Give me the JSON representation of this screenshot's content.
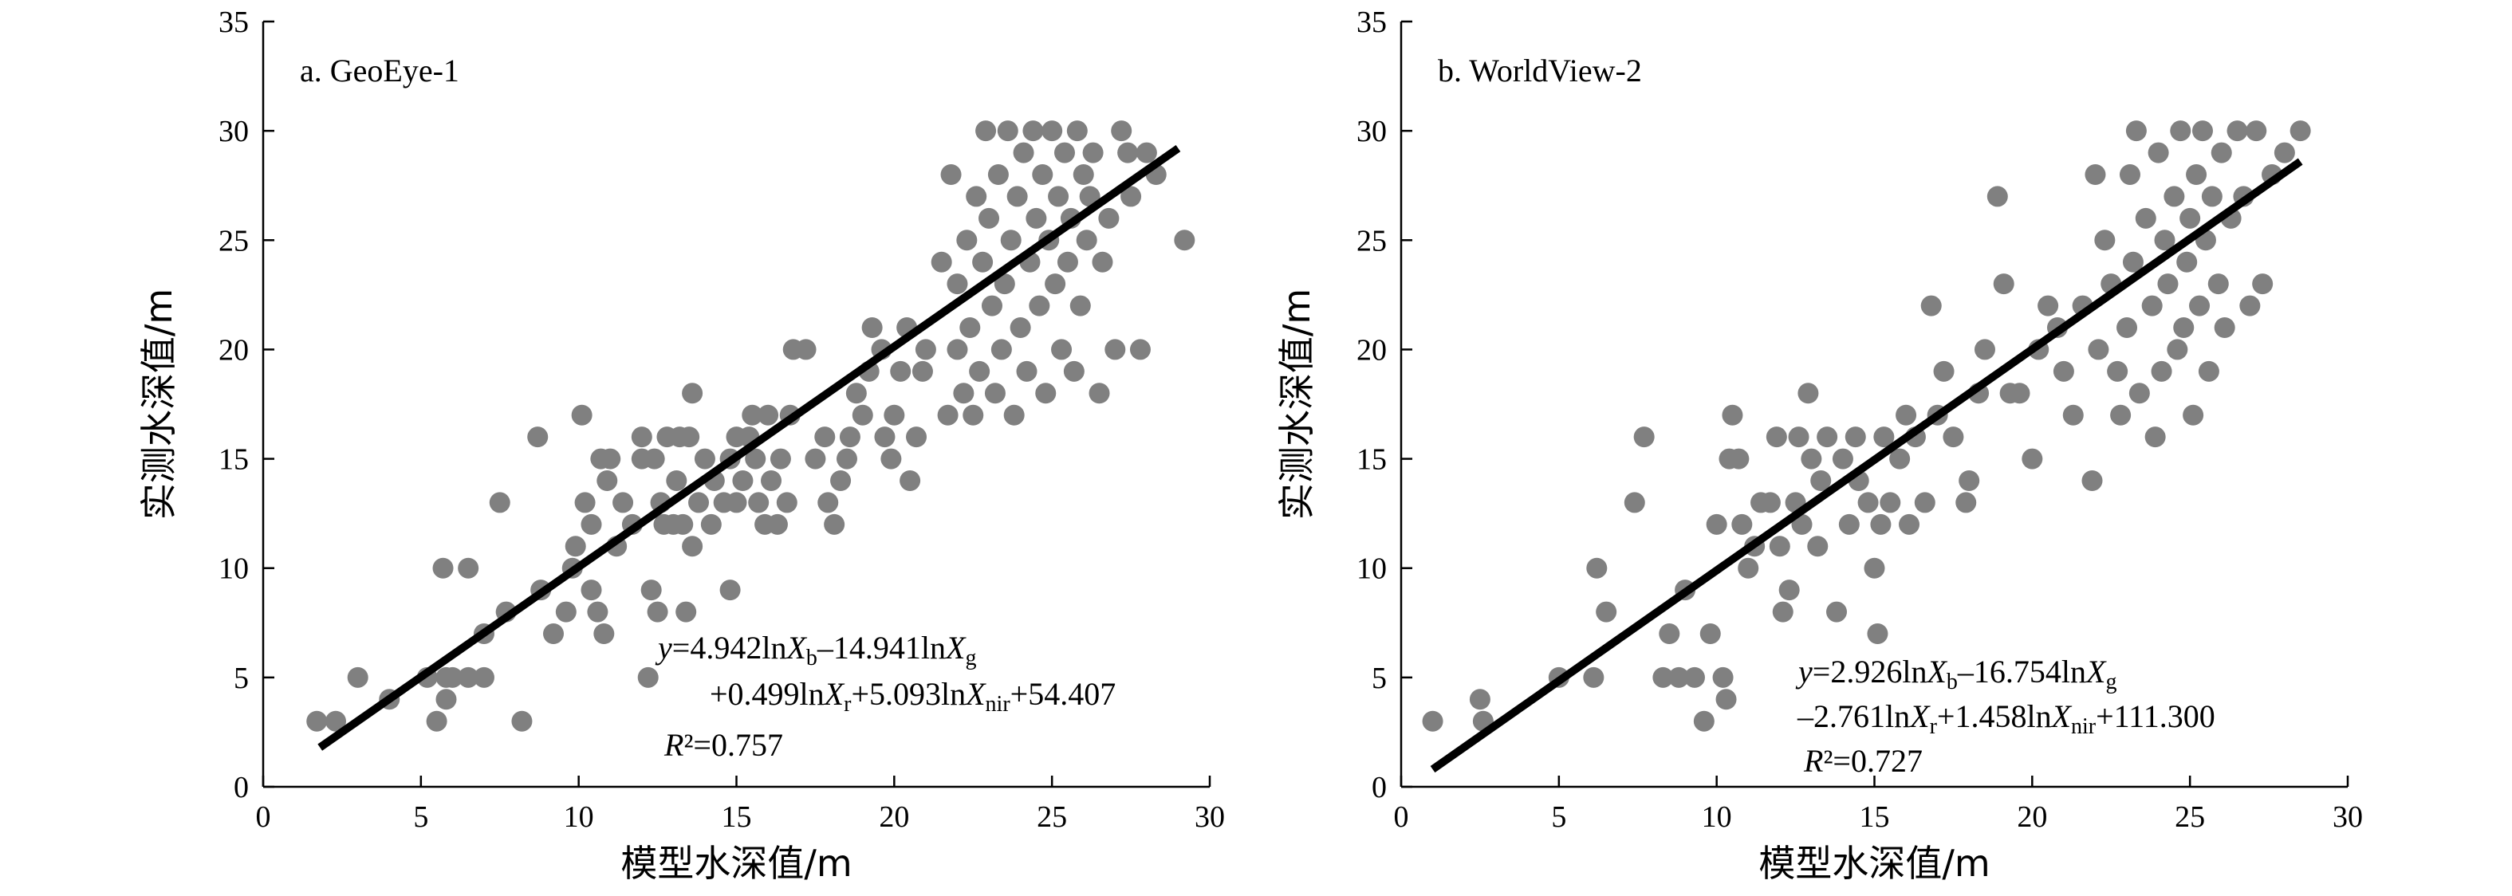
{
  "chart_data": [
    {
      "type": "scatter",
      "panel_label": "a. GeoEye-1",
      "xlabel": "模型水深值/m",
      "ylabel": "实测水深值/m",
      "xlim": [
        0,
        30
      ],
      "ylim": [
        0,
        35
      ],
      "xticks": [
        0,
        5,
        10,
        15,
        20,
        25,
        30
      ],
      "yticks": [
        0,
        5,
        10,
        15,
        20,
        25,
        30,
        35
      ],
      "marker_color": "#808080",
      "line_color": "#000000",
      "equation_line1": "y=4.942lnX_b–14.941lnX_g",
      "equation_line2": "+0.499lnX_r+5.093lnX_nir+54.407",
      "r2_label": "R²=0.757",
      "fit_line": {
        "x": [
          1.8,
          29.0
        ],
        "y": [
          1.8,
          29.2
        ]
      },
      "points": [
        [
          1.7,
          3
        ],
        [
          2.3,
          3
        ],
        [
          3.0,
          5
        ],
        [
          4.0,
          4
        ],
        [
          5.2,
          5
        ],
        [
          5.5,
          3
        ],
        [
          5.8,
          4
        ],
        [
          5.8,
          5
        ],
        [
          6.0,
          5
        ],
        [
          5.7,
          10
        ],
        [
          6.5,
          10
        ],
        [
          6.5,
          5
        ],
        [
          7.0,
          5
        ],
        [
          7.0,
          7
        ],
        [
          7.5,
          13
        ],
        [
          7.7,
          8
        ],
        [
          8.2,
          3
        ],
        [
          8.8,
          9
        ],
        [
          8.7,
          16
        ],
        [
          9.2,
          7
        ],
        [
          9.6,
          8
        ],
        [
          9.8,
          10
        ],
        [
          9.9,
          11
        ],
        [
          10.1,
          17
        ],
        [
          10.2,
          13
        ],
        [
          10.4,
          12
        ],
        [
          10.4,
          9
        ],
        [
          10.6,
          8
        ],
        [
          10.7,
          15
        ],
        [
          10.8,
          7
        ],
        [
          10.9,
          14
        ],
        [
          11.0,
          15
        ],
        [
          11.2,
          11
        ],
        [
          11.4,
          13
        ],
        [
          11.7,
          12
        ],
        [
          12.0,
          15
        ],
        [
          12.0,
          16
        ],
        [
          12.2,
          5
        ],
        [
          12.3,
          9
        ],
        [
          12.4,
          15
        ],
        [
          12.5,
          8
        ],
        [
          12.6,
          13
        ],
        [
          12.7,
          12
        ],
        [
          12.8,
          16
        ],
        [
          13.0,
          12
        ],
        [
          13.1,
          14
        ],
        [
          13.2,
          16
        ],
        [
          13.3,
          12
        ],
        [
          13.4,
          8
        ],
        [
          13.5,
          16
        ],
        [
          13.6,
          11
        ],
        [
          13.6,
          18
        ],
        [
          13.8,
          13
        ],
        [
          14.0,
          15
        ],
        [
          14.2,
          12
        ],
        [
          14.3,
          14
        ],
        [
          14.6,
          13
        ],
        [
          14.8,
          9
        ],
        [
          14.8,
          15
        ],
        [
          15.0,
          13
        ],
        [
          15.0,
          16
        ],
        [
          15.2,
          14
        ],
        [
          15.4,
          16
        ],
        [
          15.5,
          17
        ],
        [
          15.6,
          15
        ],
        [
          15.7,
          13
        ],
        [
          15.9,
          12
        ],
        [
          16.0,
          17
        ],
        [
          16.1,
          14
        ],
        [
          16.3,
          12
        ],
        [
          16.4,
          15
        ],
        [
          16.6,
          13
        ],
        [
          16.7,
          17
        ],
        [
          16.8,
          20
        ],
        [
          17.2,
          20
        ],
        [
          17.5,
          15
        ],
        [
          17.8,
          16
        ],
        [
          17.9,
          13
        ],
        [
          18.1,
          12
        ],
        [
          18.3,
          14
        ],
        [
          18.5,
          15
        ],
        [
          18.6,
          16
        ],
        [
          18.8,
          18
        ],
        [
          19.0,
          17
        ],
        [
          19.2,
          19
        ],
        [
          19.3,
          21
        ],
        [
          19.6,
          20
        ],
        [
          19.7,
          16
        ],
        [
          19.9,
          15
        ],
        [
          20.0,
          17
        ],
        [
          20.2,
          19
        ],
        [
          20.4,
          21
        ],
        [
          20.5,
          14
        ],
        [
          20.7,
          16
        ],
        [
          20.9,
          19
        ],
        [
          21.0,
          20
        ],
        [
          21.5,
          24
        ],
        [
          21.7,
          17
        ],
        [
          21.8,
          28
        ],
        [
          22.0,
          20
        ],
        [
          22.0,
          23
        ],
        [
          22.2,
          18
        ],
        [
          22.3,
          25
        ],
        [
          22.4,
          21
        ],
        [
          22.5,
          17
        ],
        [
          22.6,
          27
        ],
        [
          22.7,
          19
        ],
        [
          22.8,
          24
        ],
        [
          22.9,
          30
        ],
        [
          23.0,
          26
        ],
        [
          23.1,
          22
        ],
        [
          23.2,
          18
        ],
        [
          23.3,
          28
        ],
        [
          23.4,
          20
        ],
        [
          23.5,
          23
        ],
        [
          23.6,
          30
        ],
        [
          23.7,
          25
        ],
        [
          23.8,
          17
        ],
        [
          23.9,
          27
        ],
        [
          24.0,
          21
        ],
        [
          24.1,
          29
        ],
        [
          24.2,
          19
        ],
        [
          24.3,
          24
        ],
        [
          24.4,
          30
        ],
        [
          24.5,
          26
        ],
        [
          24.6,
          22
        ],
        [
          24.7,
          28
        ],
        [
          24.8,
          18
        ],
        [
          24.9,
          25
        ],
        [
          25.0,
          30
        ],
        [
          25.1,
          23
        ],
        [
          25.2,
          27
        ],
        [
          25.3,
          20
        ],
        [
          25.4,
          29
        ],
        [
          25.5,
          24
        ],
        [
          25.6,
          26
        ],
        [
          25.7,
          19
        ],
        [
          25.8,
          30
        ],
        [
          25.9,
          22
        ],
        [
          26.0,
          28
        ],
        [
          26.1,
          25
        ],
        [
          26.2,
          27
        ],
        [
          26.3,
          29
        ],
        [
          26.5,
          18
        ],
        [
          26.6,
          24
        ],
        [
          26.8,
          26
        ],
        [
          27.0,
          20
        ],
        [
          27.2,
          30
        ],
        [
          27.4,
          29
        ],
        [
          27.5,
          27
        ],
        [
          27.8,
          20
        ],
        [
          28.0,
          29
        ],
        [
          28.3,
          28
        ],
        [
          29.2,
          25
        ]
      ]
    },
    {
      "type": "scatter",
      "panel_label": "b. WorldView-2",
      "xlabel": "模型水深值/m",
      "ylabel": "实测水深值/m",
      "xlim": [
        0,
        30
      ],
      "ylim": [
        0,
        35
      ],
      "xticks": [
        0,
        5,
        10,
        15,
        20,
        25,
        30
      ],
      "yticks": [
        0,
        5,
        10,
        15,
        20,
        25,
        30,
        35
      ],
      "marker_color": "#808080",
      "line_color": "#000000",
      "equation_line1": "y=2.926lnX_b–16.754lnX_g",
      "equation_line2": "–2.761lnX_r+1.458lnX_nir+111.300",
      "r2_label": "R²=0.727",
      "fit_line": {
        "x": [
          1.0,
          28.5
        ],
        "y": [
          0.8,
          28.6
        ]
      },
      "points": [
        [
          1.0,
          3
        ],
        [
          2.5,
          4
        ],
        [
          2.6,
          3
        ],
        [
          5.0,
          5
        ],
        [
          6.1,
          5
        ],
        [
          6.2,
          10
        ],
        [
          6.5,
          8
        ],
        [
          7.4,
          13
        ],
        [
          7.7,
          16
        ],
        [
          8.3,
          5
        ],
        [
          8.5,
          7
        ],
        [
          8.8,
          5
        ],
        [
          9.0,
          9
        ],
        [
          9.3,
          5
        ],
        [
          9.6,
          3
        ],
        [
          9.8,
          7
        ],
        [
          10.0,
          12
        ],
        [
          10.2,
          5
        ],
        [
          10.3,
          4
        ],
        [
          10.4,
          15
        ],
        [
          10.5,
          17
        ],
        [
          10.7,
          15
        ],
        [
          10.8,
          12
        ],
        [
          11.0,
          10
        ],
        [
          11.2,
          11
        ],
        [
          11.4,
          13
        ],
        [
          11.7,
          13
        ],
        [
          11.9,
          16
        ],
        [
          12.0,
          11
        ],
        [
          12.1,
          8
        ],
        [
          12.3,
          9
        ],
        [
          12.5,
          13
        ],
        [
          12.6,
          16
        ],
        [
          12.7,
          12
        ],
        [
          12.9,
          18
        ],
        [
          13.0,
          15
        ],
        [
          13.2,
          11
        ],
        [
          13.3,
          14
        ],
        [
          13.5,
          16
        ],
        [
          13.8,
          8
        ],
        [
          14.0,
          15
        ],
        [
          14.2,
          12
        ],
        [
          14.4,
          16
        ],
        [
          14.5,
          14
        ],
        [
          14.8,
          13
        ],
        [
          15.0,
          10
        ],
        [
          15.1,
          7
        ],
        [
          15.2,
          12
        ],
        [
          15.3,
          16
        ],
        [
          15.5,
          13
        ],
        [
          15.8,
          15
        ],
        [
          16.0,
          17
        ],
        [
          16.1,
          12
        ],
        [
          16.3,
          16
        ],
        [
          16.6,
          13
        ],
        [
          16.8,
          22
        ],
        [
          17.0,
          17
        ],
        [
          17.2,
          19
        ],
        [
          17.5,
          16
        ],
        [
          17.9,
          13
        ],
        [
          18.0,
          14
        ],
        [
          18.3,
          18
        ],
        [
          18.5,
          20
        ],
        [
          18.9,
          27
        ],
        [
          19.1,
          23
        ],
        [
          19.3,
          18
        ],
        [
          19.6,
          18
        ],
        [
          20.0,
          15
        ],
        [
          20.2,
          20
        ],
        [
          20.5,
          22
        ],
        [
          20.8,
          21
        ],
        [
          21.0,
          19
        ],
        [
          21.3,
          17
        ],
        [
          21.6,
          22
        ],
        [
          21.9,
          14
        ],
        [
          22.0,
          28
        ],
        [
          22.1,
          20
        ],
        [
          22.3,
          25
        ],
        [
          22.5,
          23
        ],
        [
          22.7,
          19
        ],
        [
          22.8,
          17
        ],
        [
          23.0,
          21
        ],
        [
          23.1,
          28
        ],
        [
          23.2,
          24
        ],
        [
          23.3,
          30
        ],
        [
          23.4,
          18
        ],
        [
          23.6,
          26
        ],
        [
          23.8,
          22
        ],
        [
          23.9,
          16
        ],
        [
          24.0,
          29
        ],
        [
          24.1,
          19
        ],
        [
          24.2,
          25
        ],
        [
          24.3,
          23
        ],
        [
          24.5,
          27
        ],
        [
          24.6,
          20
        ],
        [
          24.7,
          30
        ],
        [
          24.8,
          21
        ],
        [
          24.9,
          24
        ],
        [
          25.0,
          26
        ],
        [
          25.1,
          17
        ],
        [
          25.2,
          28
        ],
        [
          25.3,
          22
        ],
        [
          25.4,
          30
        ],
        [
          25.5,
          25
        ],
        [
          25.6,
          19
        ],
        [
          25.7,
          27
        ],
        [
          25.9,
          23
        ],
        [
          26.0,
          29
        ],
        [
          26.1,
          21
        ],
        [
          26.3,
          26
        ],
        [
          26.5,
          30
        ],
        [
          26.7,
          27
        ],
        [
          26.9,
          22
        ],
        [
          27.1,
          30
        ],
        [
          27.3,
          23
        ],
        [
          27.6,
          28
        ],
        [
          28.0,
          29
        ],
        [
          28.5,
          30
        ]
      ]
    }
  ]
}
